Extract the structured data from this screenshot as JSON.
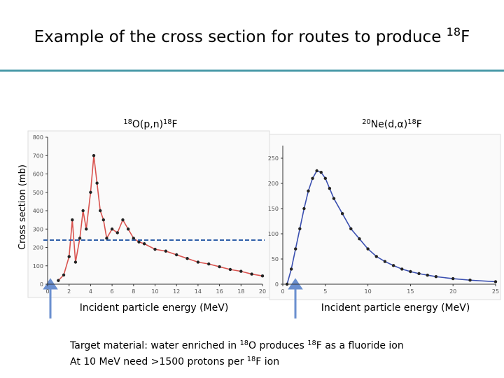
{
  "title": [
    "Example of the cross section for routes to produce ",
    "18",
    "F"
  ],
  "notes": [
    [
      "Target material: water enriched in ",
      "18",
      "O produces ",
      "18",
      "F as a fluoride ion"
    ],
    [
      "At 10 MeV need >1500 protons per ",
      "18",
      "F ion"
    ]
  ],
  "chart_data": [
    {
      "type": "line",
      "subtitle": [
        "",
        "18",
        "O(p,n)",
        "18",
        "F"
      ],
      "y_label": "Cross section (mb)",
      "x_label": "Incident particle energy (MeV)",
      "x": [
        1.0,
        1.5,
        2.0,
        2.3,
        2.6,
        3.0,
        3.3,
        3.6,
        4.0,
        4.3,
        4.6,
        4.9,
        5.2,
        5.5,
        6.0,
        6.5,
        7.0,
        7.5,
        8.0,
        8.5,
        9,
        10,
        11,
        12,
        13,
        14,
        15,
        16,
        17,
        18,
        19,
        20
      ],
      "series": [
        {
          "color": "#d9534f",
          "values": [
            20,
            50,
            150,
            350,
            120,
            250,
            400,
            300,
            500,
            700,
            550,
            400,
            350,
            250,
            300,
            280,
            350,
            300,
            250,
            230,
            220,
            190,
            180,
            160,
            140,
            120,
            110,
            95,
            80,
            70,
            55,
            45
          ]
        }
      ],
      "xlim": [
        0,
        20
      ],
      "ylim": [
        0,
        800
      ],
      "xticks": [
        0,
        2,
        4,
        6,
        8,
        10,
        12,
        14,
        16,
        18,
        20
      ],
      "yticks": [
        0,
        100,
        200,
        300,
        400,
        500,
        600,
        700,
        800
      ],
      "hline": 240,
      "hline_color": "#2f5fa8"
    },
    {
      "type": "line",
      "subtitle": [
        "",
        "20",
        "Ne(d,α)",
        "18",
        "F"
      ],
      "x_label": "Incident particle energy (MeV)",
      "x": [
        0.5,
        1,
        1.5,
        2,
        2.5,
        3,
        3.5,
        4,
        4.5,
        5,
        5.5,
        6,
        7,
        8,
        9,
        10,
        11,
        12,
        13,
        14,
        15,
        16,
        17,
        18,
        20,
        22,
        25
      ],
      "series": [
        {
          "color": "#3a4fb0",
          "values": [
            0,
            30,
            70,
            110,
            150,
            185,
            210,
            225,
            222,
            210,
            190,
            170,
            140,
            110,
            90,
            70,
            55,
            45,
            37,
            30,
            25,
            21,
            18,
            15,
            11,
            8,
            5
          ]
        }
      ],
      "xlim": [
        0,
        25
      ],
      "ylim": [
        0,
        275
      ],
      "xticks": [
        0,
        5,
        10,
        15,
        20,
        25
      ],
      "yticks": [
        0,
        50,
        100,
        150,
        200,
        250
      ]
    }
  ]
}
